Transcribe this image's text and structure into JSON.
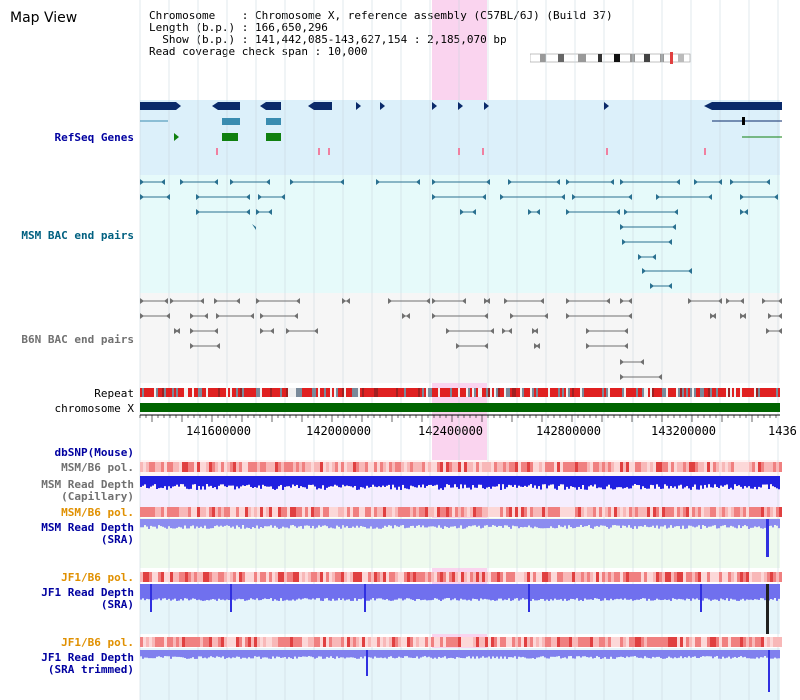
{
  "page": {
    "title": "Map View"
  },
  "info": {
    "chromosome_key": "Chromosome",
    "chromosome_value": ": Chromosome X, reference assembly (C57BL/6J) (Build 37)",
    "length_key": "Length (b.p.)",
    "length_value": ": 166,650,296",
    "show_key": "  Show (b.p.)",
    "show_value": ": 141,442,085-143,627,154 : 2,185,070 bp",
    "coverage_line": "Read coverage check span : 10,000"
  },
  "tracks": {
    "refseq": "RefSeq Genes",
    "msm_bac": "MSM BAC end pairs",
    "b6n_bac": "B6N BAC end pairs",
    "repeat": "Repeat",
    "chromosome": "chromosome X",
    "dbsnp": "dbSNP(Mouse)",
    "msm_pol_1": "MSM/B6 pol.",
    "msm_depth_cap": "MSM Read Depth",
    "msm_depth_cap_sub": "(Capillary)",
    "msm_pol_2": "MSM/B6 pol.",
    "msm_depth_sra": "MSM Read Depth",
    "msm_depth_sra_sub": "(SRA)",
    "jf1_pol_1": "JF1/B6 pol.",
    "jf1_depth_sra": "JF1 Read Depth",
    "jf1_depth_sra_sub": "(SRA)",
    "jf1_pol_2": "JF1/B6 pol.",
    "jf1_depth_trim": "JF1 Read Depth",
    "jf1_depth_trim_sub": "(SRA trimmed)"
  },
  "axis": {
    "ticks": [
      "141600000",
      "142000000",
      "142400000",
      "142800000",
      "143200000",
      "1436"
    ]
  },
  "colors": {
    "refseq_bg": "#dcf0fa",
    "msm_bg": "#e6fafa",
    "gene_navy": "#0a2a6a",
    "gene_teal": "#3a8cb0",
    "gene_green": "#108010",
    "repeat_red": "#e02020",
    "chrom_green": "#006400",
    "highlight": "#f8c8ea",
    "label_blue": "#0000a0",
    "label_teal": "#006080",
    "label_orange": "#e09000",
    "label_gray": "#606060",
    "depth_blue": "#3030e0",
    "depth_light": "#8888f0"
  }
}
